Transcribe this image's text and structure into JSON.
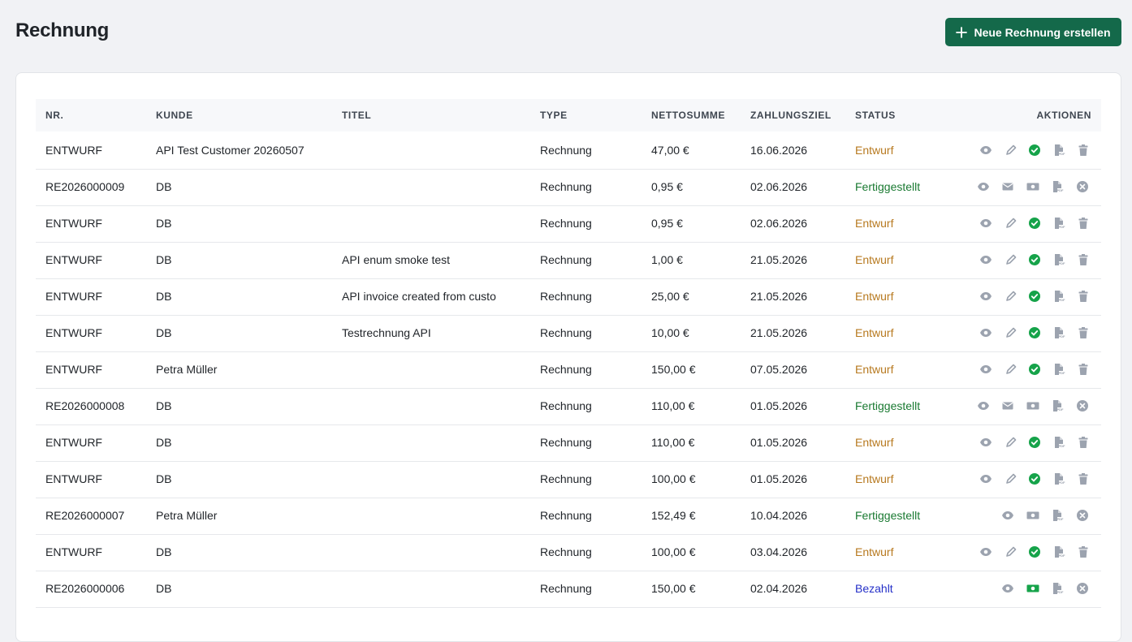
{
  "header": {
    "title": "Rechnung",
    "button": "Neue Rechnung erstellen"
  },
  "table": {
    "columns": [
      "NR.",
      "KUNDE",
      "TITEL",
      "TYPE",
      "NETTOSUMME",
      "ZAHLUNGSZIEL",
      "STATUS",
      "AKTIONEN"
    ],
    "rows": [
      [
        "ENTWURF",
        "API Test Customer 20260507",
        null,
        "Rechnung",
        "47,00 €",
        "16.06.2026",
        "Entwurf"
      ],
      [
        "RE2026000009",
        "DB",
        null,
        "Rechnung",
        "0,95 €",
        "02.06.2026",
        "Fertiggestellt"
      ],
      [
        "ENTWURF",
        "DB",
        null,
        "Rechnung",
        "0,95 €",
        "02.06.2026",
        "Entwurf"
      ],
      [
        "ENTWURF",
        "DB",
        "API enum smoke test",
        "Rechnung",
        "1,00 €",
        "21.05.2026",
        "Entwurf"
      ],
      [
        "ENTWURF",
        "DB",
        "API invoice created from custo",
        "Rechnung",
        "25,00 €",
        "21.05.2026",
        "Entwurf"
      ],
      [
        "ENTWURF",
        "DB",
        "Testrechnung API",
        "Rechnung",
        "10,00 €",
        "21.05.2026",
        "Entwurf"
      ],
      [
        "ENTWURF",
        "Petra Müller",
        null,
        "Rechnung",
        "150,00 €",
        "07.05.2026",
        "Entwurf"
      ],
      [
        "RE2026000008",
        "DB",
        null,
        "Rechnung",
        "110,00 €",
        "01.05.2026",
        "Fertiggestellt"
      ],
      [
        "ENTWURF",
        "DB",
        null,
        "Rechnung",
        "110,00 €",
        "01.05.2026",
        "Entwurf"
      ],
      [
        "ENTWURF",
        "DB",
        null,
        "Rechnung",
        "100,00 €",
        "01.05.2026",
        "Entwurf"
      ],
      [
        "RE2026000007",
        "Petra Müller",
        null,
        "Rechnung",
        "152,49 €",
        "10.04.2026",
        "Fertiggestellt"
      ],
      [
        "ENTWURF",
        "DB",
        null,
        "Rechnung",
        "100,00 €",
        "03.04.2026",
        "Entwurf"
      ],
      [
        "RE2026000006",
        "DB",
        null,
        "Rechnung",
        "150,00 €",
        "02.04.2026",
        "Bezahlt"
      ]
    ]
  }
}
